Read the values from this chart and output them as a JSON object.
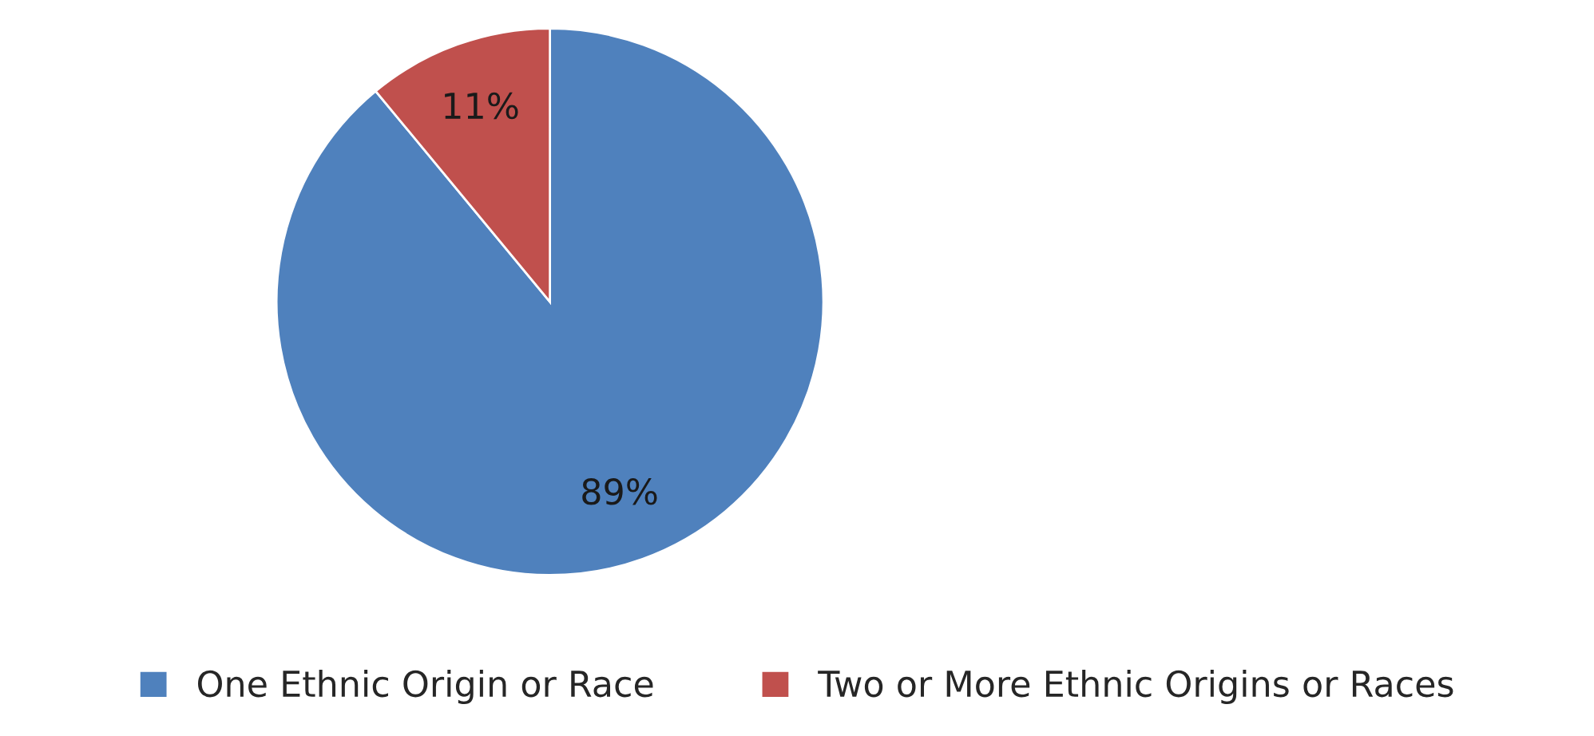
{
  "chart_data": {
    "type": "pie",
    "categories": [
      "One Ethnic Origin or Race",
      "Two or More Ethnic Origins or Races"
    ],
    "values": [
      89,
      11
    ],
    "colors": [
      "#4f81bd",
      "#c0504d"
    ],
    "value_labels": [
      "89%",
      "11%"
    ],
    "legend": "bottom"
  }
}
